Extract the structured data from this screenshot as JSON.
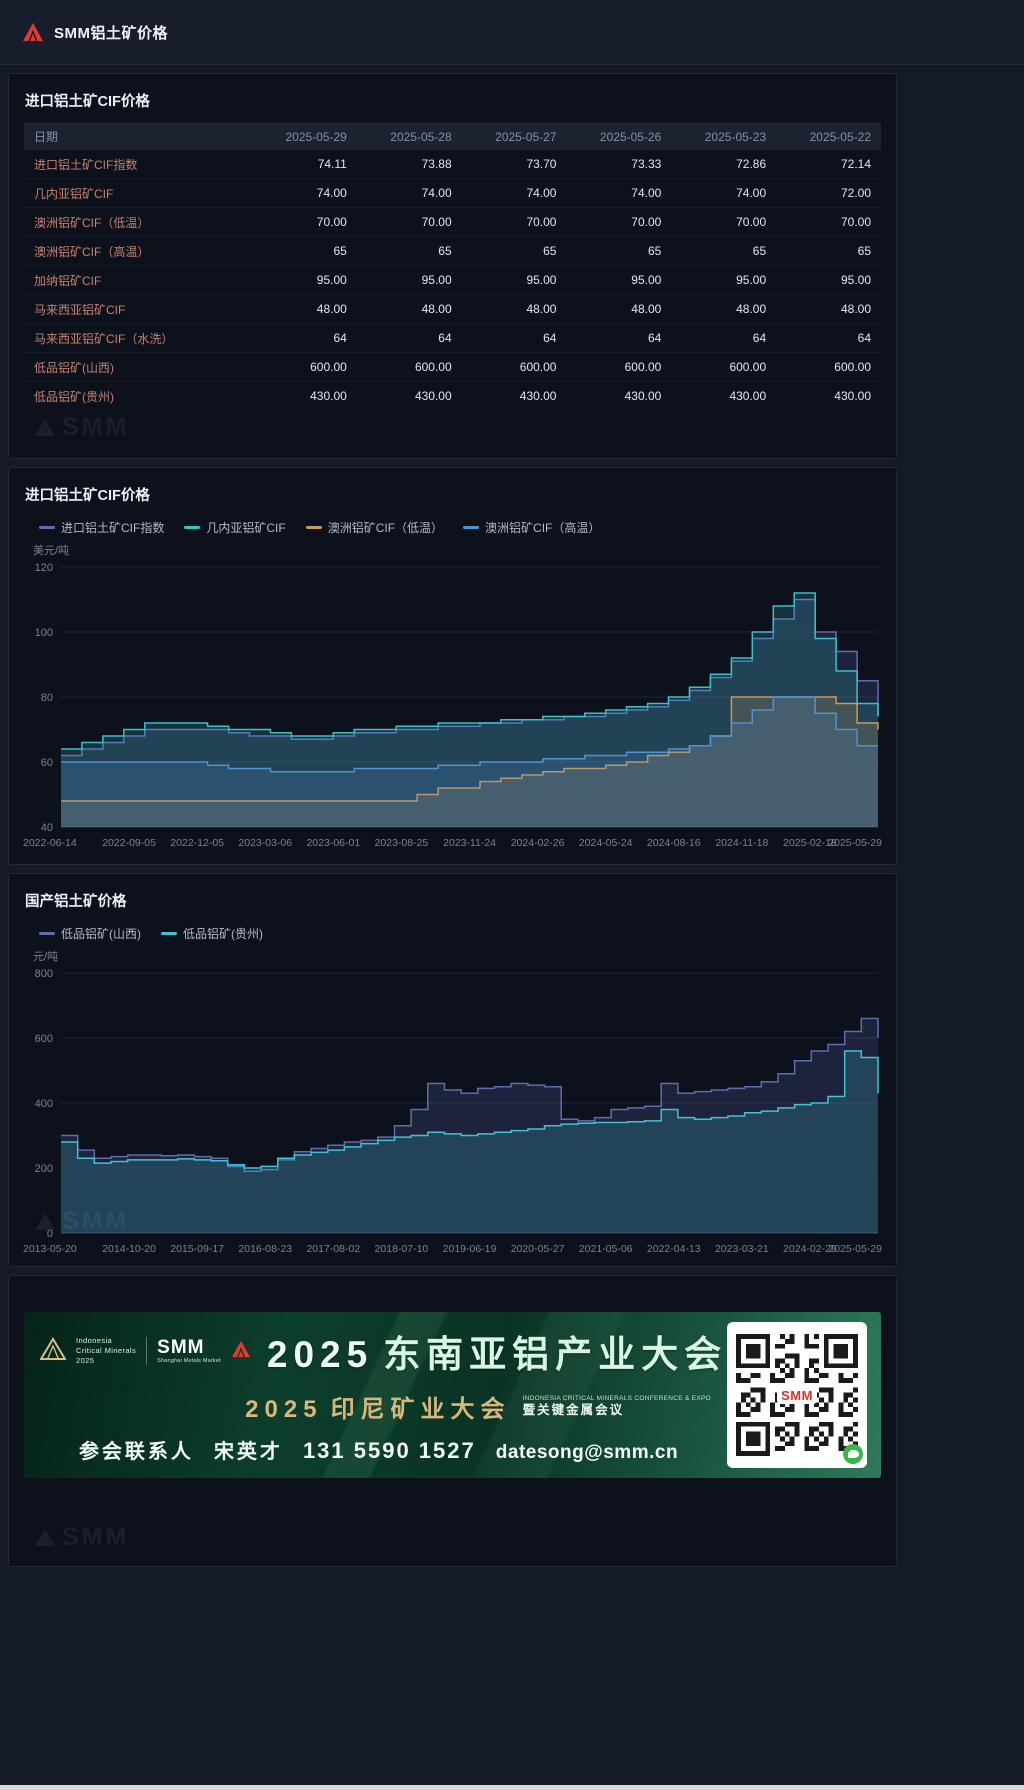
{
  "brand": {
    "accent_red": "#e23a2e"
  },
  "watermark_text": "SMM",
  "header": {
    "title": "SMM铝土矿价格"
  },
  "table_panel": {
    "title": "进口铝土矿CIF价格",
    "columns": [
      "日期",
      "2025-05-29",
      "2025-05-28",
      "2025-05-27",
      "2025-05-26",
      "2025-05-23",
      "2025-05-22"
    ],
    "rows": [
      {
        "label": "进口铝土矿CIF指数",
        "values": [
          "74.11",
          "73.88",
          "73.70",
          "73.33",
          "72.86",
          "72.14"
        ]
      },
      {
        "label": "几内亚铝矿CIF",
        "values": [
          "74.00",
          "74.00",
          "74.00",
          "74.00",
          "74.00",
          "72.00"
        ]
      },
      {
        "label": "澳洲铝矿CIF（低温）",
        "values": [
          "70.00",
          "70.00",
          "70.00",
          "70.00",
          "70.00",
          "70.00"
        ]
      },
      {
        "label": "澳洲铝矿CIF（高温）",
        "values": [
          "65",
          "65",
          "65",
          "65",
          "65",
          "65"
        ]
      },
      {
        "label": "加纳铝矿CIF",
        "values": [
          "95.00",
          "95.00",
          "95.00",
          "95.00",
          "95.00",
          "95.00"
        ]
      },
      {
        "label": "马来西亚铝矿CIF",
        "values": [
          "48.00",
          "48.00",
          "48.00",
          "48.00",
          "48.00",
          "48.00"
        ]
      },
      {
        "label": "马来西亚铝矿CIF（水洗）",
        "values": [
          "64",
          "64",
          "64",
          "64",
          "64",
          "64"
        ]
      },
      {
        "label": "低品铝矿(山西)",
        "values": [
          "600.00",
          "600.00",
          "600.00",
          "600.00",
          "600.00",
          "600.00"
        ]
      },
      {
        "label": "低品铝矿(贵州)",
        "values": [
          "430.00",
          "430.00",
          "430.00",
          "430.00",
          "430.00",
          "430.00"
        ]
      }
    ]
  },
  "chart_data": [
    {
      "type": "line",
      "title": "进口铝土矿CIF价格",
      "unit": "美元/吨",
      "ylim": [
        40,
        120
      ],
      "yticks": [
        40,
        60,
        80,
        100,
        120
      ],
      "grid": true,
      "step": true,
      "legend_position": "top",
      "x_tick_labels": [
        "2022-06-14",
        "2022-09-05",
        "2022-12-05",
        "2023-03-06",
        "2023-06-01",
        "2023-08-25",
        "2023-11-24",
        "2024-02-26",
        "2024-05-24",
        "2024-08-16",
        "2024-11-18",
        "2025-02-18",
        "2025-05-29"
      ],
      "series": [
        {
          "name": "进口铝土矿CIF指数",
          "color": "#5e6cb2",
          "values": [
            62,
            64,
            66,
            68,
            70,
            70,
            70,
            70,
            69,
            68,
            68,
            67,
            67,
            68,
            69,
            69,
            70,
            70,
            71,
            71,
            72,
            72,
            73,
            73,
            74,
            74,
            75,
            76,
            77,
            79,
            82,
            86,
            91,
            98,
            104,
            110,
            100,
            94,
            85,
            74
          ]
        },
        {
          "name": "几内亚铝矿CIF",
          "color": "#3cc0c9",
          "values": [
            64,
            66,
            68,
            70,
            72,
            72,
            72,
            71,
            70,
            70,
            69,
            68,
            68,
            69,
            70,
            70,
            71,
            71,
            72,
            72,
            72,
            73,
            73,
            74,
            74,
            75,
            76,
            77,
            78,
            80,
            83,
            87,
            92,
            100,
            108,
            112,
            98,
            88,
            78,
            74
          ]
        },
        {
          "name": "澳洲铝矿CIF（低温）",
          "color": "#cf9a55",
          "values": [
            48,
            48,
            48,
            48,
            48,
            48,
            48,
            48,
            48,
            48,
            48,
            48,
            48,
            48,
            48,
            48,
            48,
            50,
            52,
            52,
            54,
            55,
            56,
            57,
            58,
            58,
            59,
            60,
            62,
            63,
            65,
            68,
            80,
            80,
            80,
            80,
            80,
            78,
            72,
            70
          ]
        },
        {
          "name": "澳洲铝矿CIF（高温）",
          "color": "#4f93d2",
          "values": [
            60,
            60,
            60,
            60,
            60,
            60,
            60,
            59,
            58,
            58,
            57,
            57,
            57,
            57,
            58,
            58,
            58,
            58,
            59,
            59,
            60,
            60,
            60,
            61,
            61,
            62,
            62,
            63,
            63,
            64,
            65,
            68,
            72,
            76,
            80,
            80,
            75,
            70,
            65,
            65
          ]
        }
      ]
    },
    {
      "type": "line",
      "title": "国产铝土矿价格",
      "unit": "元/吨",
      "ylim": [
        0,
        800
      ],
      "yticks": [
        0,
        200,
        400,
        600,
        800
      ],
      "grid": true,
      "step": true,
      "legend_position": "top",
      "x_tick_labels": [
        "2013-05-20",
        "2014-10-20",
        "2015-09-17",
        "2016-08-23",
        "2017-08-02",
        "2018-07-10",
        "2019-06-19",
        "2020-05-27",
        "2021-05-06",
        "2022-04-13",
        "2023-03-21",
        "2024-02-29",
        "2025-05-29"
      ],
      "series": [
        {
          "name": "低品铝矿(山西)",
          "color": "#5e6cb2",
          "values": [
            300,
            255,
            230,
            235,
            240,
            240,
            238,
            240,
            235,
            230,
            205,
            190,
            195,
            225,
            250,
            260,
            270,
            280,
            285,
            295,
            330,
            380,
            460,
            440,
            430,
            445,
            450,
            460,
            455,
            450,
            350,
            345,
            355,
            380,
            385,
            390,
            460,
            430,
            435,
            440,
            445,
            450,
            465,
            490,
            530,
            560,
            580,
            620,
            660,
            600
          ]
        },
        {
          "name": "低品铝矿(贵州)",
          "color": "#41c3d4",
          "values": [
            280,
            230,
            215,
            220,
            225,
            225,
            225,
            228,
            225,
            222,
            210,
            200,
            205,
            230,
            240,
            248,
            255,
            265,
            275,
            285,
            295,
            300,
            310,
            305,
            300,
            305,
            310,
            315,
            320,
            330,
            335,
            338,
            340,
            340,
            342,
            345,
            380,
            355,
            350,
            355,
            360,
            370,
            375,
            385,
            395,
            400,
            420,
            560,
            540,
            430
          ]
        }
      ]
    }
  ],
  "banner": {
    "icm_lines": [
      "Indonesia",
      "Critical Minerals",
      "2025"
    ],
    "smm_name": "SMM",
    "smm_sub": "Shanghai Metals Market",
    "title_year": "2025",
    "title": "东南亚铝产业大会",
    "sub_year": "2025",
    "sub_title": "印尼矿业大会",
    "sub_note_en": "INDONESIA CRITICAL MINERALS CONFERENCE & EXPO",
    "sub_note_cn": "暨关键金属会议",
    "contact_label": "参会联系人",
    "contact_name": "宋英才",
    "contact_phone": "131 5590 1527",
    "contact_email": "datesong@smm.cn",
    "qr_label": "SMM"
  }
}
